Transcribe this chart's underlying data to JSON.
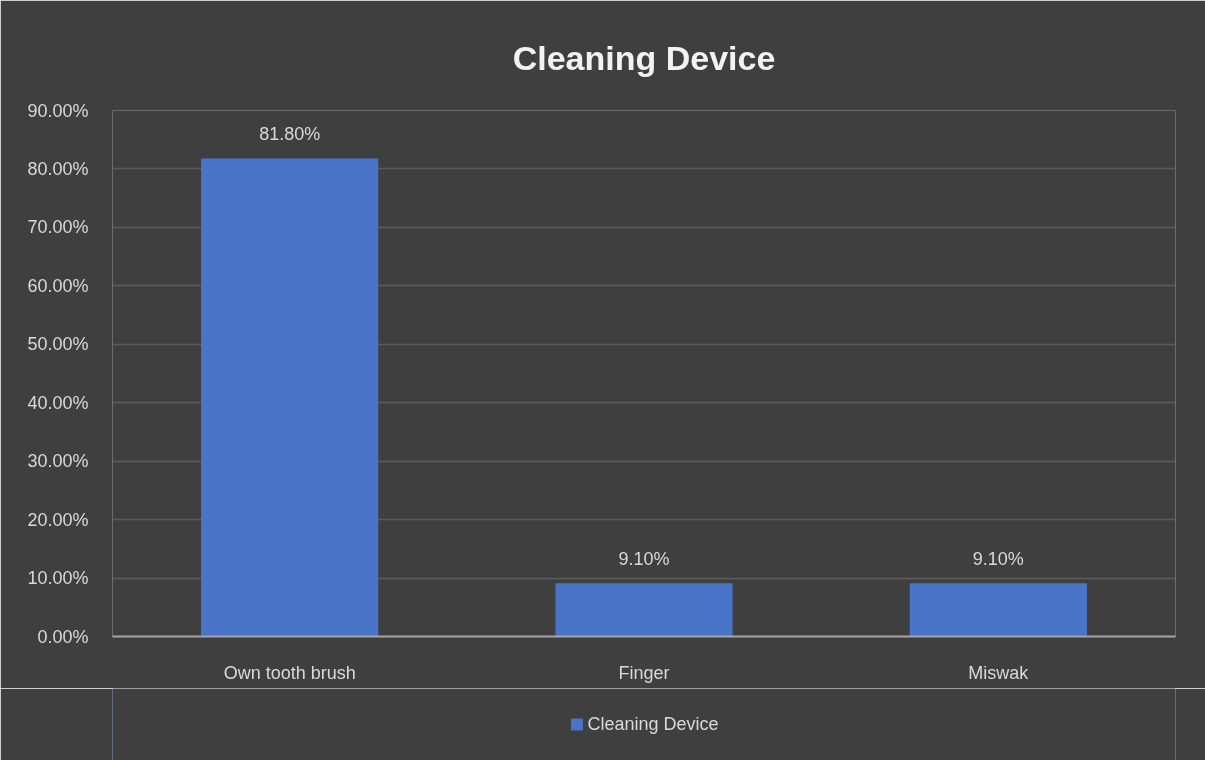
{
  "chart_data": {
    "type": "bar",
    "title": "Cleaning Device",
    "categories": [
      "Own tooth brush",
      "Finger",
      "Miswak"
    ],
    "series": [
      {
        "name": "Cleaning Device",
        "color": "#4a74c8",
        "values": [
          81.8,
          9.1,
          9.1
        ],
        "value_labels": [
          "81.80%",
          "9.10%",
          "9.10%"
        ]
      }
    ],
    "ylim": [
      0,
      90
    ],
    "yticks": [
      {
        "value": 0,
        "label": "0.00%"
      },
      {
        "value": 10,
        "label": "10.00%"
      },
      {
        "value": 20,
        "label": "20.00%"
      },
      {
        "value": 30,
        "label": "30.00%"
      },
      {
        "value": 40,
        "label": "40.00%"
      },
      {
        "value": 50,
        "label": "50.00%"
      },
      {
        "value": 60,
        "label": "60.00%"
      },
      {
        "value": 70,
        "label": "70.00%"
      },
      {
        "value": 80,
        "label": "80.00%"
      },
      {
        "value": 90,
        "label": "90.00%"
      }
    ],
    "grid": "y",
    "legend": "bottom"
  }
}
